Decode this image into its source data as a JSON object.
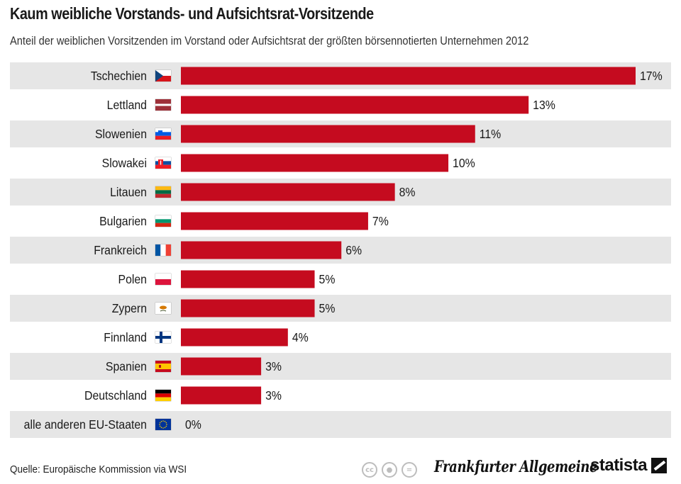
{
  "header": {
    "title": "Kaum weibliche Vorstands- und Aufsichtsrat-Vorsitzende",
    "subtitle": "Anteil der weiblichen Vorsitzenden im Vorstand oder Aufsichtsrat der größten börsennotierten Unternehmen 2012"
  },
  "chart_data": {
    "type": "bar",
    "orientation": "horizontal",
    "categories": [
      "Tschechien",
      "Lettland",
      "Slowenien",
      "Slowakei",
      "Litauen",
      "Bulgarien",
      "Frankreich",
      "Polen",
      "Zypern",
      "Finnland",
      "Spanien",
      "Deutschland",
      "alle anderen EU-Staaten"
    ],
    "values": [
      17,
      13,
      11,
      10,
      8,
      7,
      6,
      5,
      5,
      4,
      3,
      3,
      0
    ],
    "value_labels": [
      "17%",
      "13%",
      "11%",
      "10%",
      "8%",
      "7%",
      "6%",
      "5%",
      "5%",
      "4%",
      "3%",
      "3%",
      "0%"
    ],
    "flag_icons": [
      "flag-czech-icon",
      "flag-latvia-icon",
      "flag-slovenia-icon",
      "flag-slovakia-icon",
      "flag-lithuania-icon",
      "flag-bulgaria-icon",
      "flag-france-icon",
      "flag-poland-icon",
      "flag-cyprus-icon",
      "flag-finland-icon",
      "flag-spain-icon",
      "flag-germany-icon",
      "flag-eu-icon"
    ],
    "xlim": [
      0,
      17
    ],
    "bar_color": "#c50b1f",
    "row_band_color": "#e6e6e6",
    "grid": false
  },
  "footer": {
    "source": "Quelle: Europäische Kommission via WSI",
    "cc_icons": [
      "cc",
      "by",
      "="
    ],
    "publisher_logo": "Frankfurter Allgemeine",
    "brand_logo": "statista"
  }
}
